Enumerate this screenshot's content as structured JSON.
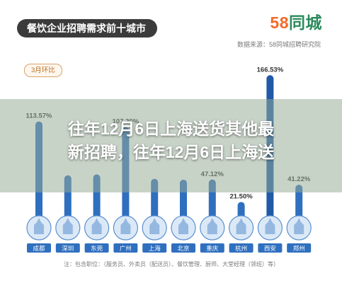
{
  "header": {
    "title": "餐饮企业招聘需求前十城市",
    "logo_num": "58",
    "logo_name": "同城",
    "source": "数据来源：58同城招聘研究院",
    "badge": "3月环比"
  },
  "headline": {
    "line1": "往年12月6日上海送货其他最",
    "line2": "新招聘，往年12月6日上海送"
  },
  "footnote": "注：包含职位：（服务员、外卖员（配送员）、餐饮管理、厨师、大堂经理（领班）等）",
  "colors": {
    "bar": "#2f6fbf",
    "bar_highlight": "#1f5aa8",
    "circle": "#dbe9f7",
    "circle_border": "#5b8fcf",
    "city_box": "#2f6fbf",
    "label": "#333333"
  },
  "chart_data": {
    "type": "bar",
    "title": "餐饮企业招聘需求前十城市",
    "categories": [
      "成都",
      "深圳",
      "东莞",
      "广州",
      "上海",
      "北京",
      "重庆",
      "杭州",
      "西安",
      "郑州"
    ],
    "values": [
      113.57,
      52.0,
      53.0,
      107.2,
      48.0,
      47.0,
      47.12,
      21.5,
      166.53,
      41.22
    ],
    "data_labels": [
      "113.57%",
      "",
      "",
      "107.20%",
      "",
      "",
      "47.12%",
      "21.50%",
      "166.53%",
      "41.22%"
    ],
    "ylim": [
      0,
      170
    ],
    "grid": false,
    "legend": "none"
  }
}
